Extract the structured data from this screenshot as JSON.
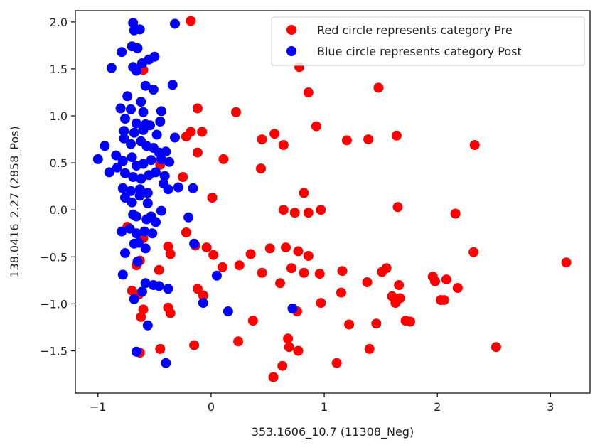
{
  "chart_data": {
    "type": "scatter",
    "xlabel": "353.1606_10.7 (11308_Neg)",
    "ylabel": "138.0416_2.27 (2858_Pos)",
    "xlim": [
      -1.2,
      3.35
    ],
    "ylim": [
      -1.95,
      2.12
    ],
    "xticks": [
      -1,
      0,
      1,
      2,
      3
    ],
    "xtick_labels": [
      "−1",
      "0",
      "1",
      "2",
      "3"
    ],
    "yticks": [
      -1.5,
      -1.0,
      -0.5,
      0.0,
      0.5,
      1.0,
      1.5,
      2.0
    ],
    "ytick_labels": [
      "−1.5",
      "−1.0",
      "−0.5",
      "0.0",
      "0.5",
      "1.0",
      "1.5",
      "2.0"
    ],
    "grid": false,
    "legend_position": "top-right",
    "series": [
      {
        "name": "Red circle represents category Pre",
        "color": "#ff0000",
        "points": [
          [
            -0.18,
            2.01
          ],
          [
            -0.6,
            1.49
          ],
          [
            0.78,
            1.52
          ],
          [
            0.86,
            1.25
          ],
          [
            1.48,
            1.3
          ],
          [
            -0.12,
            1.08
          ],
          [
            0.22,
            1.04
          ],
          [
            0.93,
            0.89
          ],
          [
            -0.18,
            0.83
          ],
          [
            -0.08,
            0.83
          ],
          [
            0.56,
            0.81
          ],
          [
            -0.22,
            0.78
          ],
          [
            1.64,
            0.79
          ],
          [
            0.45,
            0.75
          ],
          [
            1.2,
            0.74
          ],
          [
            1.39,
            0.75
          ],
          [
            0.64,
            0.69
          ],
          [
            2.33,
            0.69
          ],
          [
            -0.12,
            0.61
          ],
          [
            0.11,
            0.54
          ],
          [
            -0.45,
            0.48
          ],
          [
            0.44,
            0.44
          ],
          [
            -0.25,
            0.35
          ],
          [
            0.01,
            0.13
          ],
          [
            0.82,
            0.18
          ],
          [
            0.64,
            0.0
          ],
          [
            0.74,
            -0.03
          ],
          [
            0.86,
            -0.03
          ],
          [
            0.97,
            0.0
          ],
          [
            1.65,
            0.03
          ],
          [
            2.16,
            -0.04
          ],
          [
            -0.22,
            -0.24
          ],
          [
            -0.74,
            -0.18
          ],
          [
            -0.6,
            -0.3
          ],
          [
            -0.38,
            -0.39
          ],
          [
            -0.36,
            -0.47
          ],
          [
            -0.14,
            -0.38
          ],
          [
            -0.04,
            -0.4
          ],
          [
            0.02,
            -0.48
          ],
          [
            0.1,
            -0.61
          ],
          [
            0.25,
            -0.59
          ],
          [
            0.35,
            -0.47
          ],
          [
            0.52,
            -0.41
          ],
          [
            0.66,
            -0.4
          ],
          [
            0.77,
            -0.44
          ],
          [
            0.86,
            -0.49
          ],
          [
            0.45,
            -0.67
          ],
          [
            0.61,
            -0.78
          ],
          [
            0.71,
            -0.62
          ],
          [
            0.82,
            -0.67
          ],
          [
            0.96,
            -0.68
          ],
          [
            1.16,
            -0.65
          ],
          [
            1.38,
            -0.77
          ],
          [
            1.51,
            -0.66
          ],
          [
            1.55,
            -0.62
          ],
          [
            1.66,
            -0.8
          ],
          [
            1.96,
            -0.71
          ],
          [
            1.98,
            -0.76
          ],
          [
            2.08,
            -0.74
          ],
          [
            2.32,
            -0.45
          ],
          [
            3.14,
            -0.56
          ],
          [
            2.18,
            -0.83
          ],
          [
            1.6,
            -0.92
          ],
          [
            1.63,
            -0.99
          ],
          [
            1.67,
            -0.94
          ],
          [
            2.03,
            -0.96
          ],
          [
            2.06,
            -0.96
          ],
          [
            -0.7,
            -0.86
          ],
          [
            -0.64,
            -0.9
          ],
          [
            -0.66,
            -0.59
          ],
          [
            -0.63,
            -0.54
          ],
          [
            -0.12,
            -0.84
          ],
          [
            -0.07,
            -0.91
          ],
          [
            -0.38,
            -1.04
          ],
          [
            -0.36,
            -1.1
          ],
          [
            -0.6,
            -1.06
          ],
          [
            -0.62,
            -1.14
          ],
          [
            0.37,
            -1.18
          ],
          [
            0.76,
            -1.08
          ],
          [
            0.97,
            -0.99
          ],
          [
            1.15,
            -0.88
          ],
          [
            1.22,
            -1.22
          ],
          [
            1.46,
            -1.21
          ],
          [
            1.72,
            -1.18
          ],
          [
            1.76,
            -1.19
          ],
          [
            -0.46,
            -0.64
          ],
          [
            -0.45,
            -1.48
          ],
          [
            -0.63,
            -1.52
          ],
          [
            -0.15,
            -1.44
          ],
          [
            0.24,
            -1.4
          ],
          [
            0.68,
            -1.37
          ],
          [
            0.69,
            -1.46
          ],
          [
            0.77,
            -1.5
          ],
          [
            1.11,
            -1.63
          ],
          [
            1.4,
            -1.48
          ],
          [
            2.52,
            -1.46
          ],
          [
            0.55,
            -1.78
          ],
          [
            0.63,
            -1.66
          ]
        ]
      },
      {
        "name": "Blue circle represents category Post",
        "color": "#0000ff",
        "points": [
          [
            -0.69,
            1.99
          ],
          [
            -0.68,
            1.91
          ],
          [
            -0.63,
            1.92
          ],
          [
            -0.32,
            1.98
          ],
          [
            -0.79,
            1.68
          ],
          [
            -0.88,
            1.51
          ],
          [
            -0.7,
            1.74
          ],
          [
            -0.65,
            1.72
          ],
          [
            -0.61,
            1.56
          ],
          [
            -0.55,
            1.6
          ],
          [
            -0.5,
            1.63
          ],
          [
            -0.69,
            1.52
          ],
          [
            -0.66,
            1.48
          ],
          [
            -0.58,
            1.32
          ],
          [
            -0.51,
            1.28
          ],
          [
            -0.34,
            1.33
          ],
          [
            -0.74,
            1.21
          ],
          [
            -0.62,
            1.15
          ],
          [
            -0.8,
            1.08
          ],
          [
            -0.71,
            1.07
          ],
          [
            -0.6,
            1.04
          ],
          [
            -0.44,
            1.05
          ],
          [
            -0.76,
            0.97
          ],
          [
            -0.66,
            0.92
          ],
          [
            -0.58,
            0.91
          ],
          [
            -0.54,
            0.9
          ],
          [
            -0.45,
            0.94
          ],
          [
            -0.77,
            0.84
          ],
          [
            -0.68,
            0.82
          ],
          [
            -0.6,
            0.85
          ],
          [
            -0.48,
            0.8
          ],
          [
            -0.32,
            0.77
          ],
          [
            -0.77,
            0.76
          ],
          [
            -0.71,
            0.7
          ],
          [
            -0.62,
            0.73
          ],
          [
            -0.57,
            0.68
          ],
          [
            -0.51,
            0.66
          ],
          [
            -0.46,
            0.61
          ],
          [
            -0.4,
            0.62
          ],
          [
            -0.94,
            0.68
          ],
          [
            -1.0,
            0.54
          ],
          [
            -0.84,
            0.58
          ],
          [
            -0.78,
            0.52
          ],
          [
            -0.7,
            0.56
          ],
          [
            -0.66,
            0.47
          ],
          [
            -0.6,
            0.49
          ],
          [
            -0.53,
            0.53
          ],
          [
            -0.44,
            0.54
          ],
          [
            -0.37,
            0.51
          ],
          [
            -0.9,
            0.4
          ],
          [
            -0.83,
            0.45
          ],
          [
            -0.76,
            0.39
          ],
          [
            -0.69,
            0.35
          ],
          [
            -0.62,
            0.33
          ],
          [
            -0.55,
            0.37
          ],
          [
            -0.49,
            0.4
          ],
          [
            -0.41,
            0.36
          ],
          [
            -0.78,
            0.23
          ],
          [
            -0.71,
            0.2
          ],
          [
            -0.63,
            0.22
          ],
          [
            -0.56,
            0.18
          ],
          [
            -0.42,
            0.28
          ],
          [
            -0.38,
            0.22
          ],
          [
            -0.29,
            0.24
          ],
          [
            -0.16,
            0.23
          ],
          [
            -0.76,
            0.13
          ],
          [
            -0.7,
            0.08
          ],
          [
            -0.63,
            0.15
          ],
          [
            -0.56,
            0.07
          ],
          [
            -0.53,
            -0.07
          ],
          [
            -0.44,
            -0.01
          ],
          [
            -0.69,
            -0.05
          ],
          [
            -0.66,
            -0.07
          ],
          [
            -0.57,
            -0.1
          ],
          [
            -0.49,
            -0.13
          ],
          [
            -0.2,
            -0.08
          ],
          [
            -0.79,
            -0.23
          ],
          [
            -0.72,
            -0.2
          ],
          [
            -0.66,
            -0.25
          ],
          [
            -0.59,
            -0.23
          ],
          [
            -0.52,
            -0.25
          ],
          [
            -0.68,
            -0.36
          ],
          [
            -0.64,
            -0.35
          ],
          [
            -0.58,
            -0.41
          ],
          [
            -0.15,
            -0.36
          ],
          [
            -0.76,
            -0.46
          ],
          [
            -0.65,
            -0.55
          ],
          [
            -0.78,
            -0.69
          ],
          [
            -0.58,
            -0.78
          ],
          [
            -0.51,
            -0.8
          ],
          [
            -0.46,
            -0.81
          ],
          [
            -0.38,
            -0.84
          ],
          [
            -0.61,
            -0.87
          ],
          [
            -0.68,
            -0.95
          ],
          [
            -0.56,
            -1.23
          ],
          [
            -0.07,
            -0.99
          ],
          [
            0.05,
            -0.7
          ],
          [
            0.15,
            -1.08
          ],
          [
            0.72,
            -1.05
          ],
          [
            -0.66,
            -1.51
          ],
          [
            -0.4,
            -1.63
          ]
        ]
      }
    ]
  }
}
